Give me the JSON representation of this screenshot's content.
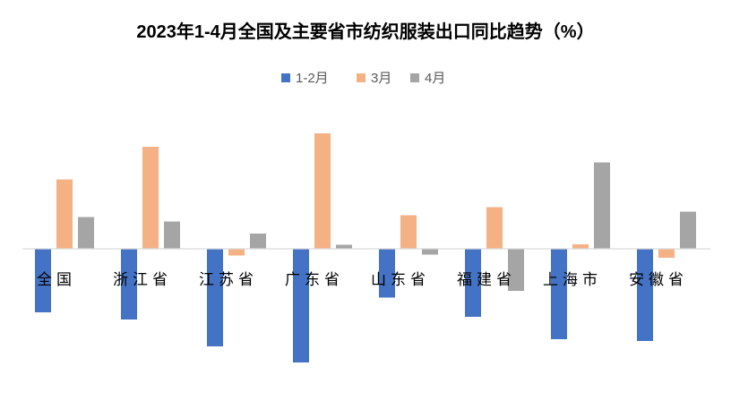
{
  "chart_data": {
    "type": "bar",
    "title": "2023年1-4月全国及主要省市纺织服装出口同比趋势（%）",
    "categories": [
      "全国",
      "浙江省",
      "江苏省",
      "广东省",
      "山东省",
      "福建省",
      "上海市",
      "安徽省"
    ],
    "series": [
      {
        "name": "1-2月",
        "color": "#4472C4",
        "values": [
          -14.2,
          -15.8,
          -21.8,
          -25.4,
          -10.9,
          -15.2,
          -20.2,
          -20.6
        ]
      },
      {
        "name": "3月",
        "color": "#F4B183",
        "values": [
          15.5,
          22.8,
          -1.5,
          25.8,
          7.5,
          9.3,
          1.0,
          -2.0
        ]
      },
      {
        "name": "4月",
        "color": "#A5A5A5",
        "values": [
          7.1,
          6.1,
          3.4,
          0.9,
          -1.3,
          -9.4,
          19.3,
          8.3
        ]
      }
    ],
    "ylim": [
      -30,
      30
    ],
    "grid": false,
    "axis_labels_visible": false,
    "legend_position": "top-center"
  }
}
